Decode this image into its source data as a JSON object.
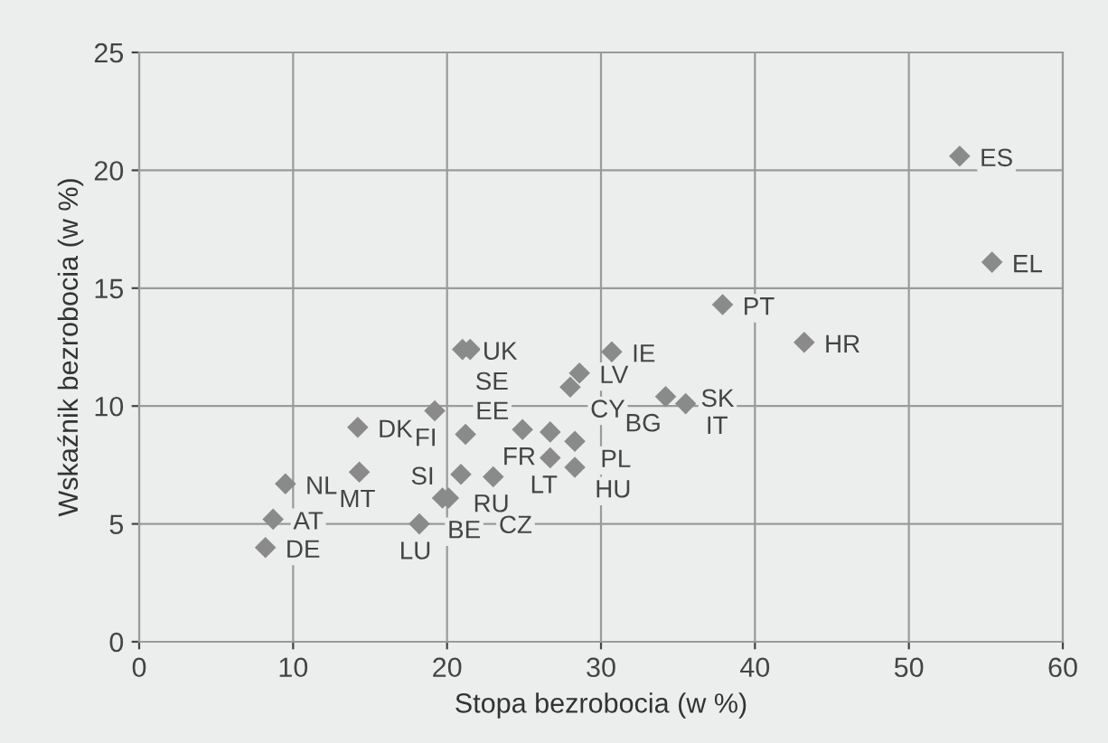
{
  "chart_data": {
    "type": "scatter",
    "xlabel": "Stopa bezrobocia (w %)",
    "ylabel": "Wskaźnik bezrobocia (w %)",
    "xlim": [
      0,
      60
    ],
    "xticks": [
      0,
      10,
      20,
      30,
      40,
      50,
      60
    ],
    "ylim": [
      0,
      25
    ],
    "yticks": [
      0,
      5,
      10,
      15,
      20,
      25
    ],
    "grid": true,
    "marker": "diamond",
    "series": [
      {
        "color": "#8a8a8a",
        "x": [
          53.3,
          55.4,
          37.9,
          43.2,
          30.7,
          21.0,
          21.5,
          28.6,
          28.0,
          34.2,
          35.5,
          19.2,
          14.2,
          21.2,
          24.9,
          26.7,
          28.3,
          26.7,
          28.3,
          23.0,
          20.9,
          19.7,
          20.1,
          18.2,
          8.2,
          8.7,
          9.5,
          14.3
        ],
        "values": [
          20.6,
          16.1,
          14.3,
          12.7,
          12.3,
          12.4,
          12.4,
          11.4,
          10.8,
          10.4,
          10.1,
          9.8,
          9.1,
          8.8,
          9.0,
          8.9,
          8.5,
          7.8,
          7.4,
          7.0,
          7.1,
          6.1,
          6.1,
          5.0,
          4.0,
          5.2,
          6.7,
          7.2
        ]
      }
    ],
    "annotations": [
      {
        "text": "ES",
        "x": 53.3,
        "y": 20.6
      },
      {
        "text": "EL",
        "x": 55.4,
        "y": 16.1
      },
      {
        "text": "PT",
        "x": 37.9,
        "y": 14.3
      },
      {
        "text": "HR",
        "x": 43.2,
        "y": 12.7
      },
      {
        "text": "IE",
        "x": 30.7,
        "y": 12.3
      },
      {
        "text": "UK",
        "x": 21.0,
        "y": 12.4
      },
      {
        "text": "SE",
        "x": 21.5,
        "y": 12.4
      },
      {
        "text": "LV",
        "x": 28.6,
        "y": 11.4
      },
      {
        "text": "CY",
        "x": 28.0,
        "y": 10.8
      },
      {
        "text": "SK",
        "x": 34.2,
        "y": 10.4
      },
      {
        "text": "IT",
        "x": 35.5,
        "y": 10.1
      },
      {
        "text": "FI",
        "x": 19.2,
        "y": 9.8
      },
      {
        "text": "DK",
        "x": 14.2,
        "y": 9.1
      },
      {
        "text": "EE",
        "x": 21.2,
        "y": 8.8
      },
      {
        "text": "FR",
        "x": 24.9,
        "y": 9.0
      },
      {
        "text": "PL",
        "x": 26.7,
        "y": 8.9
      },
      {
        "text": "BG",
        "x": 28.3,
        "y": 8.5
      },
      {
        "text": "LT",
        "x": 26.7,
        "y": 7.8
      },
      {
        "text": "HU",
        "x": 28.3,
        "y": 7.4
      },
      {
        "text": "RU",
        "x": 23.0,
        "y": 7.0
      },
      {
        "text": "SI",
        "x": 20.9,
        "y": 7.1
      },
      {
        "text": "BE",
        "x": 19.7,
        "y": 6.1
      },
      {
        "text": "CZ",
        "x": 20.1,
        "y": 6.1
      },
      {
        "text": "LU",
        "x": 18.2,
        "y": 5.0
      },
      {
        "text": "DE",
        "x": 8.2,
        "y": 4.0
      },
      {
        "text": "AT",
        "x": 8.7,
        "y": 5.2
      },
      {
        "text": "NL",
        "x": 9.5,
        "y": 6.7
      },
      {
        "text": "MT",
        "x": 14.3,
        "y": 7.2
      }
    ]
  }
}
